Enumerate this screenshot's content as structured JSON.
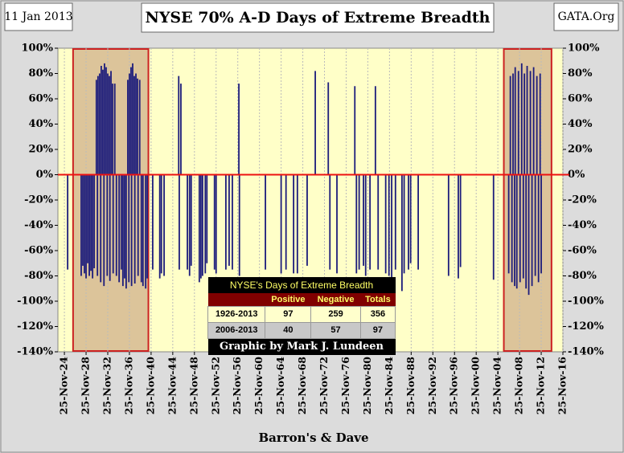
{
  "header": {
    "date": "11 Jan 2013",
    "source": "GATA.Org"
  },
  "chart_data": {
    "type": "spike",
    "title": "NYSE 70% A-D Days of Extreme Breadth",
    "xlabel": "Barron's & Dave",
    "color": "#1c1c7c",
    "zero_line_color": "#ee1111",
    "highlight_color": "#dcc49a",
    "highlight_border": "#cc2222",
    "xgrid": true,
    "xlim": [
      1923.7,
      2016.9
    ],
    "ylim": [
      -140,
      100
    ],
    "y2lim": [
      -140,
      100
    ],
    "xticks": [
      {
        "value": 1924.9,
        "label": "25-Nov-24"
      },
      {
        "value": 1928.9,
        "label": "25-Nov-28"
      },
      {
        "value": 1932.9,
        "label": "25-Nov-32"
      },
      {
        "value": 1936.9,
        "label": "25-Nov-36"
      },
      {
        "value": 1940.9,
        "label": "25-Nov-40"
      },
      {
        "value": 1944.9,
        "label": "25-Nov-44"
      },
      {
        "value": 1948.9,
        "label": "25-Nov-48"
      },
      {
        "value": 1952.9,
        "label": "25-Nov-52"
      },
      {
        "value": 1956.9,
        "label": "25-Nov-56"
      },
      {
        "value": 1960.9,
        "label": "25-Nov-60"
      },
      {
        "value": 1964.9,
        "label": "25-Nov-64"
      },
      {
        "value": 1968.9,
        "label": "25-Nov-68"
      },
      {
        "value": 1972.9,
        "label": "25-Nov-72"
      },
      {
        "value": 1976.9,
        "label": "25-Nov-76"
      },
      {
        "value": 1980.9,
        "label": "25-Nov-80"
      },
      {
        "value": 1984.9,
        "label": "25-Nov-84"
      },
      {
        "value": 1988.9,
        "label": "25-Nov-88"
      },
      {
        "value": 1992.9,
        "label": "25-Nov-92"
      },
      {
        "value": 1996.9,
        "label": "25-Nov-96"
      },
      {
        "value": 2000.9,
        "label": "25-Nov-00"
      },
      {
        "value": 2004.9,
        "label": "25-Nov-04"
      },
      {
        "value": 2008.9,
        "label": "25-Nov-08"
      },
      {
        "value": 2012.9,
        "label": "25-Nov-12"
      },
      {
        "value": 2016.9,
        "label": "25-Nov-16"
      }
    ],
    "yticks": [
      {
        "value": 100,
        "label": "100%"
      },
      {
        "value": 80,
        "label": "80%"
      },
      {
        "value": 60,
        "label": "60%"
      },
      {
        "value": 40,
        "label": "40%"
      },
      {
        "value": 20,
        "label": "20%"
      },
      {
        "value": 0,
        "label": "0%"
      },
      {
        "value": -20,
        "label": "-20%"
      },
      {
        "value": -40,
        "label": "-40%"
      },
      {
        "value": -60,
        "label": "-60%"
      },
      {
        "value": -80,
        "label": "-80%"
      },
      {
        "value": -100,
        "label": "-100%"
      },
      {
        "value": -120,
        "label": "-120%"
      },
      {
        "value": -140,
        "label": "-140%"
      }
    ],
    "y2ticks": [
      {
        "value": 100,
        "label": "100%"
      },
      {
        "value": 80,
        "label": "80%"
      },
      {
        "value": 60,
        "label": "60%"
      },
      {
        "value": 40,
        "label": "40%"
      },
      {
        "value": 20,
        "label": "20%"
      },
      {
        "value": 0,
        "label": "0%"
      },
      {
        "value": -20,
        "label": "-20%"
      },
      {
        "value": -40,
        "label": "-40%"
      },
      {
        "value": -60,
        "label": "-60%"
      },
      {
        "value": -80,
        "label": "-80%"
      },
      {
        "value": -100,
        "label": "-100%"
      },
      {
        "value": -120,
        "label": "-120%"
      },
      {
        "value": -140,
        "label": "-140%"
      }
    ],
    "highlights": [
      [
        1926.5,
        1940.4
      ],
      [
        2006.0,
        2014.8
      ]
    ],
    "x": [
      1925.5,
      1928.0,
      1928.3,
      1928.6,
      1928.9,
      1929.2,
      1929.5,
      1929.8,
      1930.1,
      1930.4,
      1930.8,
      1931.0,
      1931.1,
      1931.4,
      1931.6,
      1931.7,
      1932.0,
      1932.2,
      1932.3,
      1932.6,
      1932.8,
      1932.9,
      1933.2,
      1933.3,
      1933.5,
      1933.8,
      1933.9,
      1934.2,
      1934.5,
      1935.0,
      1935.4,
      1935.7,
      1936.0,
      1936.3,
      1936.6,
      1936.8,
      1936.9,
      1937.2,
      1937.3,
      1937.5,
      1937.8,
      1937.9,
      1938.1,
      1938.4,
      1938.5,
      1938.8,
      1939.1,
      1939.4,
      1939.9,
      1940.2,
      1941.2,
      1942.5,
      1942.8,
      1943.3,
      1946.0,
      1946.1,
      1946.4,
      1947.6,
      1948.0,
      1948.3,
      1949.8,
      1950.1,
      1950.4,
      1950.9,
      1951.2,
      1952.6,
      1952.9,
      1954.7,
      1955.3,
      1955.9,
      1957.1,
      1957.2,
      1962.0,
      1964.9,
      1965.8,
      1967.2,
      1967.9,
      1969.7,
      1971.2,
      1973.6,
      1973.9,
      1975.2,
      1978.5,
      1978.8,
      1979.3,
      1980.1,
      1980.5,
      1981.3,
      1982.3,
      1982.8,
      1984.2,
      1984.8,
      1985.3,
      1986.0,
      1987.2,
      1987.6,
      1988.4,
      1988.8,
      1990.2,
      1995.8,
      1997.6,
      1998.0,
      2004.1,
      2006.9,
      2007.2,
      2007.5,
      2007.7,
      2008.0,
      2008.1,
      2008.4,
      2008.7,
      2009.0,
      2009.3,
      2009.6,
      2009.8,
      2010.1,
      2010.3,
      2010.6,
      2010.9,
      2011.2,
      2011.5,
      2011.8,
      2012.1,
      2012.4,
      2012.7,
      2012.9
    ],
    "values": [
      -75,
      -80,
      -72,
      -78,
      -82,
      -70,
      -80,
      -76,
      -82,
      -74,
      75,
      -80,
      78,
      80,
      -85,
      86,
      83,
      -88,
      88,
      85,
      -80,
      80,
      78,
      -84,
      82,
      72,
      -78,
      72,
      -80,
      -85,
      -75,
      -88,
      -82,
      -90,
      75,
      -85,
      80,
      85,
      -88,
      88,
      78,
      -86,
      80,
      76,
      -80,
      75,
      -85,
      -88,
      -90,
      -82,
      -75,
      -82,
      -78,
      -80,
      78,
      -75,
      72,
      -75,
      -80,
      -72,
      -85,
      -82,
      -80,
      -78,
      -70,
      -75,
      -78,
      -75,
      -72,
      -75,
      72,
      -80,
      -75,
      -78,
      -75,
      -78,
      -78,
      -72,
      82,
      73,
      -75,
      -78,
      70,
      -78,
      -75,
      -72,
      -80,
      -75,
      70,
      -75,
      -78,
      -80,
      -82,
      -75,
      -92,
      -78,
      -75,
      -70,
      -75,
      -80,
      -82,
      -73,
      -83,
      -78,
      78,
      -85,
      80,
      -88,
      85,
      -90,
      82,
      -85,
      88,
      -82,
      80,
      -90,
      86,
      -95,
      82,
      -88,
      85,
      -80,
      78,
      -85,
      80,
      -78
    ],
    "inset_table": {
      "title": "NYSE's Days of Extreme Breadth",
      "columns": [
        "Positive",
        "Negative",
        "Totals"
      ],
      "rows": [
        [
          "1926-2013",
          "97",
          "259",
          "356"
        ],
        [
          "2006-2013",
          "40",
          "57",
          "97"
        ]
      ],
      "footer": "Graphic by Mark J. Lundeen"
    }
  }
}
